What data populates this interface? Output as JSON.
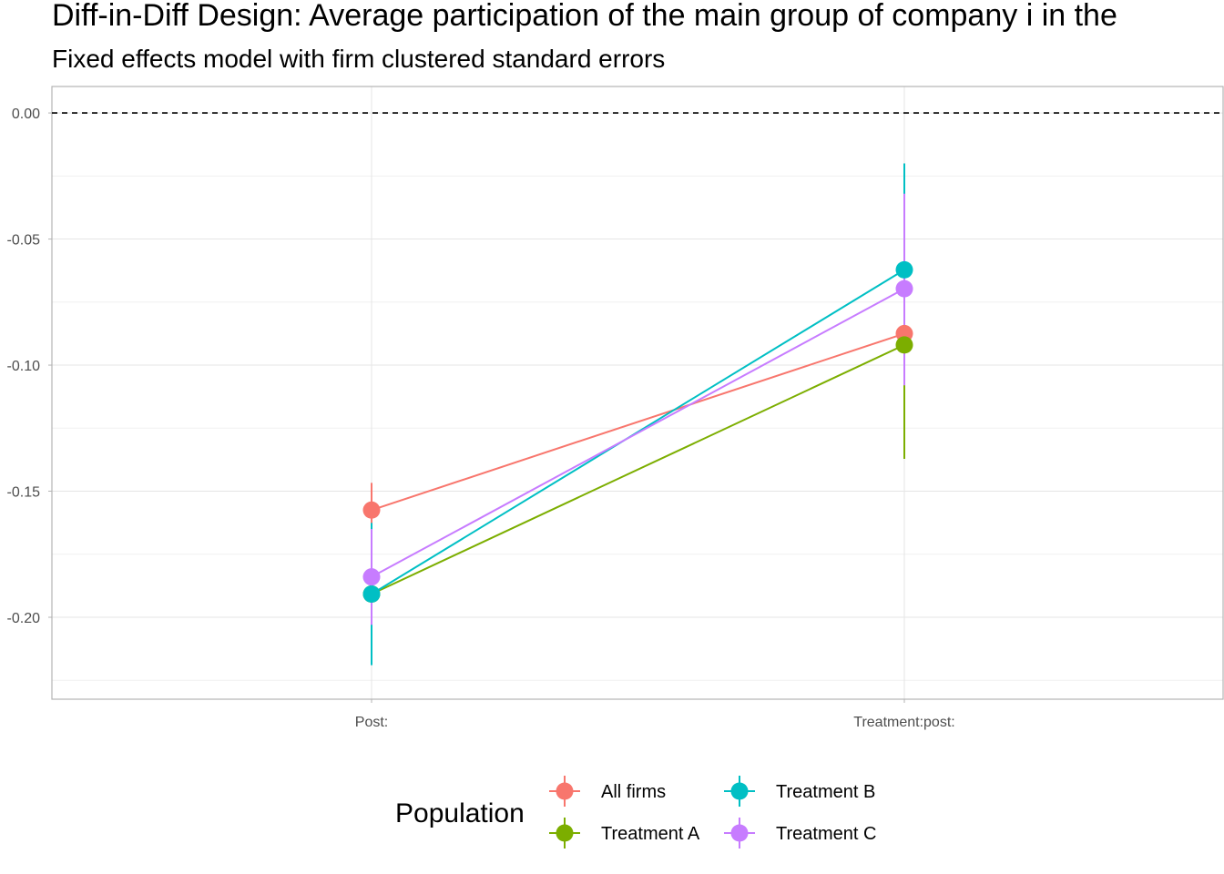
{
  "chart_data": {
    "type": "scatter",
    "title": "Diff-in-Diff Design: Average participation of the main group of company i in the",
    "subtitle": "Fixed effects model with firm clustered standard errors",
    "xlabel": "",
    "ylabel": "",
    "categories": [
      "Post:",
      "Treatment:post:"
    ],
    "ylim": [
      -0.2325,
      0.0105
    ],
    "yticks": [
      0.0,
      -0.05,
      -0.1,
      -0.15,
      -0.2
    ],
    "ytick_labels": [
      "0.00",
      "-0.05",
      "-0.10",
      "-0.15",
      "-0.20"
    ],
    "reference_line": 0.0,
    "grid": true,
    "legend": {
      "title": "Population",
      "placement": "bottom"
    },
    "series": [
      {
        "name": "All firms",
        "color": "#F8766D",
        "values": [
          -0.1575,
          -0.0875
        ],
        "lower": [
          -0.1682,
          -0.0942
        ],
        "upper": [
          -0.1467,
          -0.0808
        ]
      },
      {
        "name": "Treatment A",
        "color": "#7CAE00",
        "values": [
          -0.1908,
          -0.092
        ],
        "lower": [
          -0.203,
          -0.1372
        ],
        "upper": [
          -0.1786,
          -0.0468
        ]
      },
      {
        "name": "Treatment B",
        "color": "#00BFC4",
        "values": [
          -0.1908,
          -0.0622
        ],
        "lower": [
          -0.219,
          -0.105
        ],
        "upper": [
          -0.1626,
          -0.02
        ]
      },
      {
        "name": "Treatment C",
        "color": "#C77CFF",
        "values": [
          -0.184,
          -0.0697
        ],
        "lower": [
          -0.203,
          -0.108
        ],
        "upper": [
          -0.165,
          -0.032
        ]
      }
    ]
  }
}
